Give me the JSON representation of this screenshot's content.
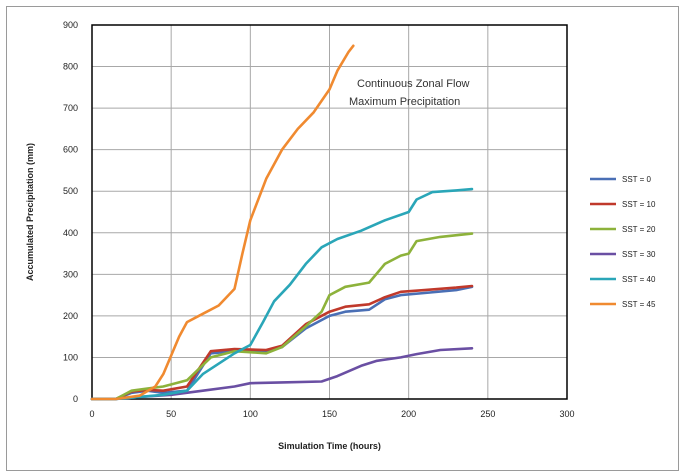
{
  "chart_data": {
    "type": "line",
    "title": "",
    "xlabel": "Simulation Time (hours)",
    "ylabel": "Accumulated Precipitation (mm)",
    "xlim": [
      0,
      300
    ],
    "ylim": [
      0,
      900
    ],
    "x_ticks": [
      "0",
      "50",
      "100",
      "150",
      "200",
      "250",
      "300"
    ],
    "y_ticks": [
      "0",
      "100",
      "200",
      "300",
      "400",
      "500",
      "600",
      "700",
      "800",
      "900"
    ],
    "annotation": [
      "Continuous Zonal Flow",
      "Maximum Precipitation"
    ],
    "grid": true,
    "legend_position": "right",
    "series": [
      {
        "name": "SST = 0",
        "color": "#4a6fb5",
        "points": [
          [
            0,
            0
          ],
          [
            15,
            0
          ],
          [
            25,
            15
          ],
          [
            35,
            20
          ],
          [
            45,
            15
          ],
          [
            60,
            20
          ],
          [
            75,
            110
          ],
          [
            90,
            115
          ],
          [
            110,
            115
          ],
          [
            120,
            125
          ],
          [
            135,
            170
          ],
          [
            150,
            200
          ],
          [
            160,
            210
          ],
          [
            175,
            215
          ],
          [
            185,
            240
          ],
          [
            195,
            250
          ],
          [
            210,
            255
          ],
          [
            230,
            262
          ],
          [
            240,
            270
          ]
        ]
      },
      {
        "name": "SST = 10",
        "color": "#c0392b",
        "points": [
          [
            0,
            0
          ],
          [
            15,
            0
          ],
          [
            25,
            18
          ],
          [
            35,
            22
          ],
          [
            45,
            20
          ],
          [
            60,
            30
          ],
          [
            75,
            115
          ],
          [
            90,
            120
          ],
          [
            110,
            118
          ],
          [
            120,
            128
          ],
          [
            135,
            180
          ],
          [
            150,
            210
          ],
          [
            160,
            222
          ],
          [
            175,
            228
          ],
          [
            185,
            245
          ],
          [
            195,
            258
          ],
          [
            210,
            262
          ],
          [
            230,
            268
          ],
          [
            240,
            272
          ]
        ]
      },
      {
        "name": "SST = 20",
        "color": "#8db23b",
        "points": [
          [
            0,
            0
          ],
          [
            15,
            0
          ],
          [
            25,
            20
          ],
          [
            35,
            25
          ],
          [
            45,
            30
          ],
          [
            60,
            45
          ],
          [
            75,
            100
          ],
          [
            90,
            115
          ],
          [
            110,
            110
          ],
          [
            120,
            125
          ],
          [
            135,
            175
          ],
          [
            145,
            210
          ],
          [
            150,
            250
          ],
          [
            160,
            270
          ],
          [
            175,
            280
          ],
          [
            185,
            325
          ],
          [
            195,
            345
          ],
          [
            200,
            350
          ],
          [
            205,
            380
          ],
          [
            220,
            390
          ],
          [
            240,
            398
          ]
        ]
      },
      {
        "name": "SST = 30",
        "color": "#6a4fa3",
        "points": [
          [
            0,
            0
          ],
          [
            15,
            0
          ],
          [
            30,
            5
          ],
          [
            50,
            10
          ],
          [
            70,
            20
          ],
          [
            90,
            30
          ],
          [
            100,
            38
          ],
          [
            120,
            40
          ],
          [
            145,
            42
          ],
          [
            155,
            55
          ],
          [
            170,
            80
          ],
          [
            180,
            92
          ],
          [
            195,
            100
          ],
          [
            205,
            108
          ],
          [
            220,
            118
          ],
          [
            240,
            122
          ]
        ]
      },
      {
        "name": "SST = 40",
        "color": "#2aa6b8",
        "points": [
          [
            0,
            0
          ],
          [
            15,
            0
          ],
          [
            30,
            5
          ],
          [
            45,
            10
          ],
          [
            60,
            20
          ],
          [
            70,
            60
          ],
          [
            90,
            110
          ],
          [
            100,
            130
          ],
          [
            108,
            185
          ],
          [
            115,
            235
          ],
          [
            125,
            275
          ],
          [
            135,
            325
          ],
          [
            145,
            365
          ],
          [
            155,
            385
          ],
          [
            170,
            405
          ],
          [
            185,
            430
          ],
          [
            200,
            450
          ],
          [
            205,
            480
          ],
          [
            215,
            498
          ],
          [
            230,
            502
          ],
          [
            240,
            505
          ]
        ]
      },
      {
        "name": "SST = 45",
        "color": "#f08a30",
        "points": [
          [
            0,
            0
          ],
          [
            15,
            0
          ],
          [
            30,
            8
          ],
          [
            40,
            30
          ],
          [
            45,
            60
          ],
          [
            55,
            150
          ],
          [
            60,
            185
          ],
          [
            70,
            205
          ],
          [
            80,
            225
          ],
          [
            90,
            265
          ],
          [
            95,
            350
          ],
          [
            100,
            430
          ],
          [
            110,
            530
          ],
          [
            120,
            600
          ],
          [
            130,
            650
          ],
          [
            140,
            690
          ],
          [
            150,
            745
          ],
          [
            155,
            790
          ],
          [
            162,
            835
          ],
          [
            165,
            850
          ]
        ]
      }
    ]
  }
}
